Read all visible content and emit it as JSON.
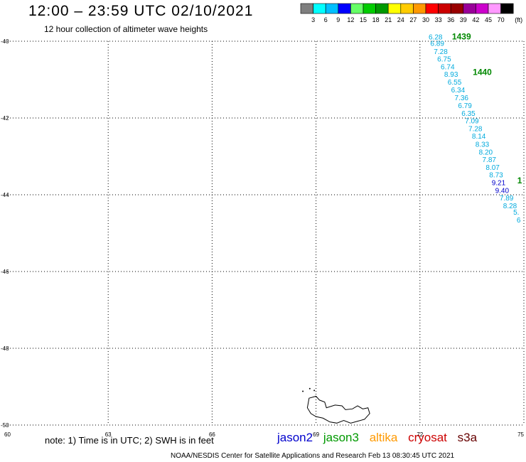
{
  "header": {
    "title": "12:00 – 23:59 UTC 02/10/2021",
    "subtitle": "12 hour collection of altimeter wave heights"
  },
  "colorbar": {
    "ticks": [
      "3",
      "6",
      "9",
      "12",
      "15",
      "18",
      "21",
      "24",
      "27",
      "30",
      "33",
      "36",
      "39",
      "42",
      "45",
      "70"
    ],
    "unit": "(ft)",
    "colors": [
      "#7f7f7f",
      "#00ffff",
      "#00bfff",
      "#0000ff",
      "#66ff66",
      "#00cc00",
      "#009900",
      "#ffff00",
      "#ffcc00",
      "#ff9900",
      "#ff0000",
      "#cc0000",
      "#990000",
      "#990099",
      "#cc00cc",
      "#ff99ff",
      "#000000"
    ]
  },
  "footer": {
    "note": "note: 1) Time is in UTC; 2) SWH is in feet",
    "satellites": [
      {
        "name": "jason2",
        "color": "#0000cc"
      },
      {
        "name": "jason3",
        "color": "#009900"
      },
      {
        "name": "altika",
        "color": "#ff9900"
      },
      {
        "name": "cryosat",
        "color": "#cc0000"
      },
      {
        "name": "s3a",
        "color": "#660000"
      }
    ],
    "credit": "NOAA/NESDIS Center for Satellite Applications and Research    Feb 13 08:30:45 UTC 2021"
  },
  "chart_data": {
    "type": "scatter",
    "xlim": [
      60,
      75
    ],
    "ylim": [
      -50,
      -40
    ],
    "x_ticks": [
      "60",
      "63",
      "66",
      "69",
      "72",
      "75"
    ],
    "y_ticks": [
      "-40",
      "-42",
      "-44",
      "-46",
      "-48",
      "-50"
    ],
    "grid": true,
    "units": "ft",
    "track_color": "#00aadd",
    "points": [
      {
        "lon": 72.45,
        "lat": -39.95,
        "v": "6.28",
        "c": "#00aadd"
      },
      {
        "lon": 72.5,
        "lat": -40.12,
        "v": "6.89",
        "c": "#00aadd"
      },
      {
        "lon": 72.6,
        "lat": -40.33,
        "v": "7.28",
        "c": "#00aadd"
      },
      {
        "lon": 72.7,
        "lat": -40.53,
        "v": "6.75",
        "c": "#00aadd"
      },
      {
        "lon": 72.8,
        "lat": -40.73,
        "v": "6.74",
        "c": "#00aadd"
      },
      {
        "lon": 72.9,
        "lat": -40.93,
        "v": "8.93",
        "c": "#00aadd"
      },
      {
        "lon": 73.0,
        "lat": -41.13,
        "v": "6.55",
        "c": "#00aadd"
      },
      {
        "lon": 73.1,
        "lat": -41.33,
        "v": "6.34",
        "c": "#00aadd"
      },
      {
        "lon": 73.2,
        "lat": -41.54,
        "v": "7.36",
        "c": "#00aadd"
      },
      {
        "lon": 73.3,
        "lat": -41.74,
        "v": "6.79",
        "c": "#00aadd"
      },
      {
        "lon": 73.4,
        "lat": -41.94,
        "v": "6.35",
        "c": "#00aadd"
      },
      {
        "lon": 73.5,
        "lat": -42.14,
        "v": "7.09",
        "c": "#00aadd"
      },
      {
        "lon": 73.6,
        "lat": -42.34,
        "v": "7.28",
        "c": "#00aadd"
      },
      {
        "lon": 73.7,
        "lat": -42.54,
        "v": "8.14",
        "c": "#00aadd"
      },
      {
        "lon": 73.8,
        "lat": -42.75,
        "v": "8.33",
        "c": "#00aadd"
      },
      {
        "lon": 73.9,
        "lat": -42.95,
        "v": "8.20",
        "c": "#00aadd"
      },
      {
        "lon": 74.0,
        "lat": -43.15,
        "v": "7.87",
        "c": "#00aadd"
      },
      {
        "lon": 74.1,
        "lat": -43.35,
        "v": "8.07",
        "c": "#00aadd"
      },
      {
        "lon": 74.2,
        "lat": -43.55,
        "v": "8.73",
        "c": "#00aadd"
      },
      {
        "lon": 74.27,
        "lat": -43.75,
        "v": "9.21",
        "c": "#0000cc"
      },
      {
        "lon": 74.37,
        "lat": -43.95,
        "v": "9.40",
        "c": "#0000cc"
      },
      {
        "lon": 74.5,
        "lat": -44.15,
        "v": "7.89",
        "c": "#00aadd"
      },
      {
        "lon": 74.6,
        "lat": -44.35,
        "v": "8.28",
        "c": "#00aadd"
      },
      {
        "lon": 74.78,
        "lat": -44.52,
        "v": "5.",
        "c": "#00aadd"
      },
      {
        "lon": 74.85,
        "lat": -44.72,
        "v": "6",
        "c": "#00aadd"
      }
    ],
    "time_labels": [
      {
        "lon": 73.2,
        "lat": -39.95,
        "t": "1439",
        "c": "#008800"
      },
      {
        "lon": 73.8,
        "lat": -40.88,
        "t": "1440",
        "c": "#008800"
      },
      {
        "lon": 74.88,
        "lat": -43.7,
        "t": "1",
        "c": "#008800"
      }
    ],
    "island": {
      "name": "Kerguelen",
      "outline": [
        [
          68.8,
          -49.3
        ],
        [
          69.0,
          -49.25
        ],
        [
          69.1,
          -49.35
        ],
        [
          69.25,
          -49.4
        ],
        [
          69.3,
          -49.55
        ],
        [
          69.55,
          -49.48
        ],
        [
          69.75,
          -49.5
        ],
        [
          69.85,
          -49.6
        ],
        [
          70.05,
          -49.58
        ],
        [
          70.2,
          -49.5
        ],
        [
          70.35,
          -49.58
        ],
        [
          70.5,
          -49.55
        ],
        [
          70.55,
          -49.7
        ],
        [
          70.4,
          -49.85
        ],
        [
          70.2,
          -49.9
        ],
        [
          70.0,
          -49.95
        ],
        [
          69.8,
          -49.88
        ],
        [
          69.6,
          -49.95
        ],
        [
          69.4,
          -49.92
        ],
        [
          69.2,
          -49.82
        ],
        [
          69.0,
          -49.78
        ],
        [
          68.85,
          -49.7
        ],
        [
          68.75,
          -49.55
        ],
        [
          68.8,
          -49.3
        ]
      ]
    }
  }
}
